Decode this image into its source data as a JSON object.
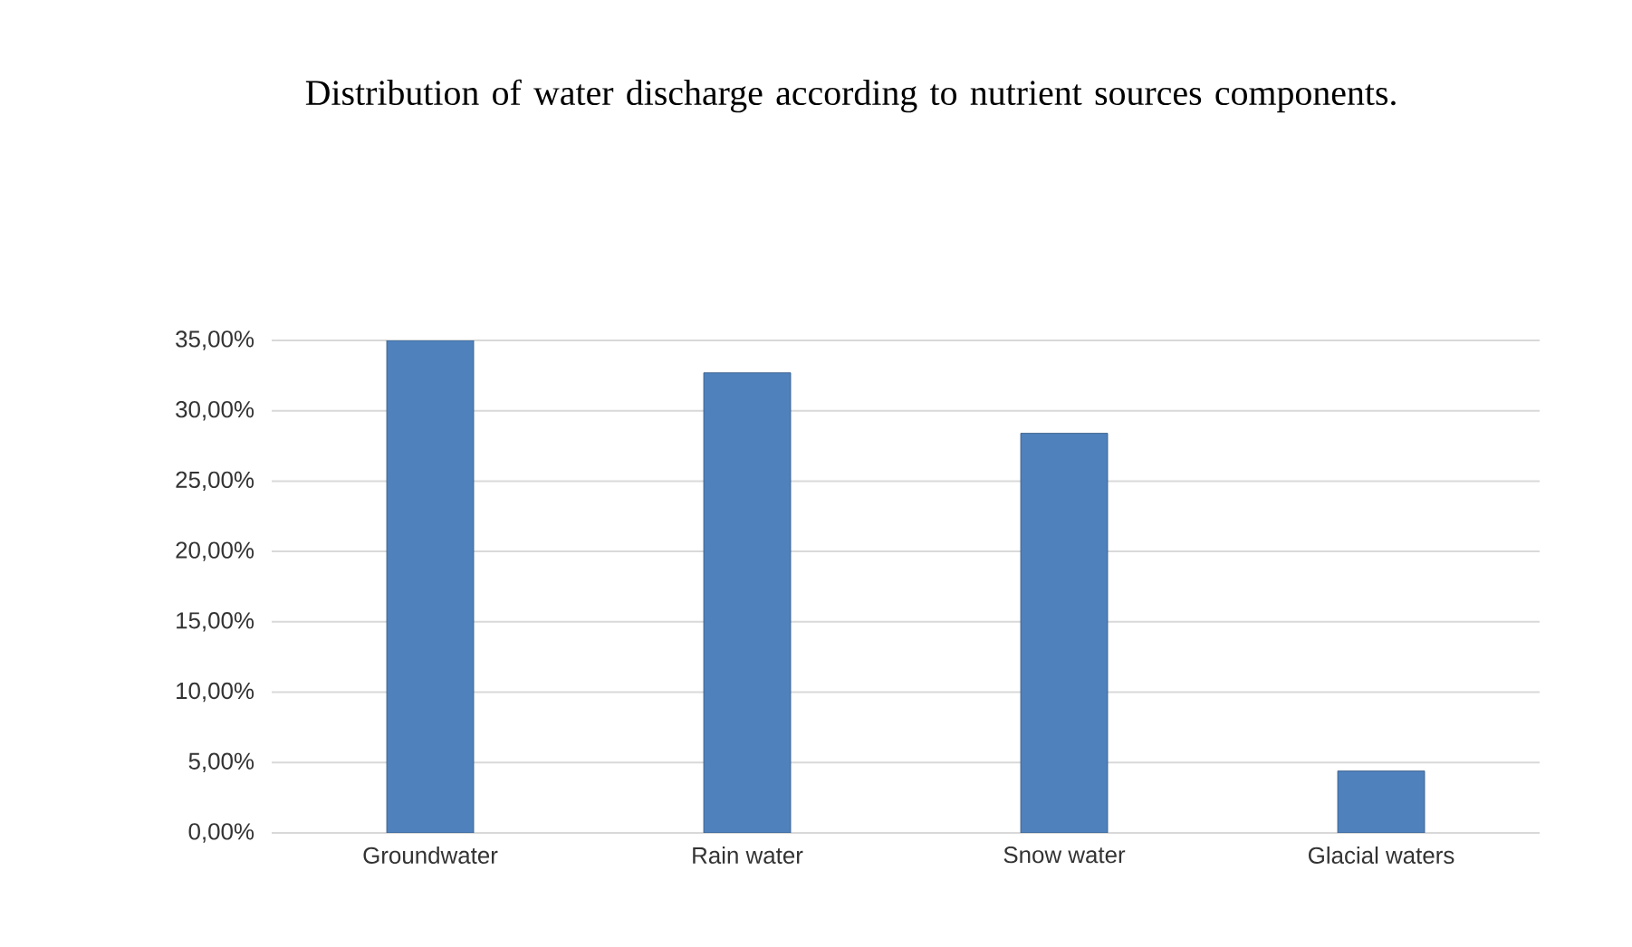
{
  "chart_data": {
    "type": "bar",
    "title": "Distribution  of water discharge  according  to nutrient sources components.",
    "categories": [
      "Groundwater",
      "Rain water",
      "Snow water",
      "Glacial waters"
    ],
    "values": [
      35.0,
      32.7,
      28.4,
      4.4
    ],
    "color": "#4f81bd",
    "ylim": [
      0,
      35
    ],
    "yticks": [
      {
        "value": 0,
        "label": "0,00%"
      },
      {
        "value": 5,
        "label": "5,00%"
      },
      {
        "value": 10,
        "label": "10,00%"
      },
      {
        "value": 15,
        "label": "15,00%"
      },
      {
        "value": 20,
        "label": "20,00%"
      },
      {
        "value": 25,
        "label": "25,00%"
      },
      {
        "value": 30,
        "label": "30,00%"
      },
      {
        "value": 35,
        "label": "35,00%"
      }
    ],
    "grid": "y"
  }
}
